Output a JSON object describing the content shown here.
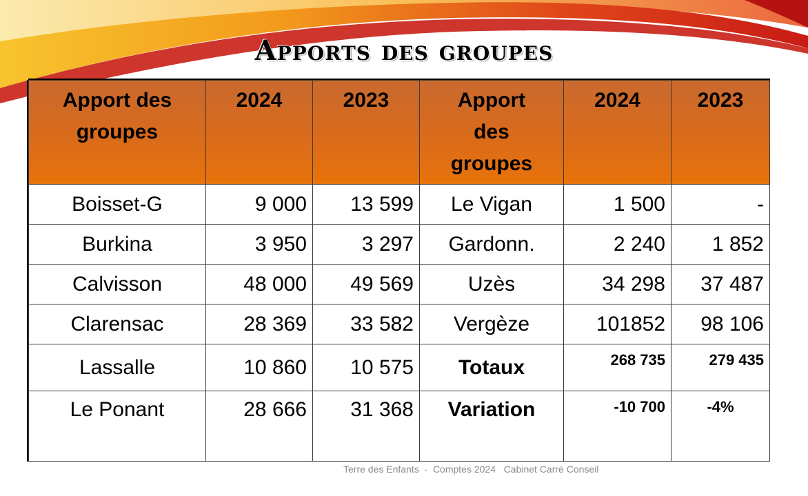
{
  "title": "Apports des groupes",
  "table": {
    "headers": [
      "Apport des groupes",
      "2024",
      "2023",
      "Apport des groupes",
      "2024",
      "2023"
    ],
    "rows": [
      [
        "Boisset-G",
        "9 000",
        "13 599",
        "Le Vigan",
        "1 500",
        "-"
      ],
      [
        "Burkina",
        "3 950",
        "3 297",
        "Gardonn.",
        "2 240",
        "1 852"
      ],
      [
        "Calvisson",
        "48 000",
        "49 569",
        "Uzès",
        "34 298",
        "37 487"
      ],
      [
        "Clarensac",
        "28 369",
        "33 582",
        "Vergèze",
        "101852",
        "98 106"
      ],
      [
        "Lassalle",
        "10 860",
        "10 575",
        "Totaux",
        "268 735",
        "279 435"
      ],
      [
        "Le Ponant",
        "28 666",
        "31 368",
        "Variation",
        "-10 700",
        "-4%"
      ]
    ]
  },
  "footer": {
    "left": "Terre des Enfants  -  Comptes 2024",
    "right": "Cabinet Carré Conseil"
  },
  "colors": {
    "header_fill": "#e46a08",
    "swoosh_red": "#d3271b",
    "swoosh_orange": "#f39a1c",
    "swoosh_yellow": "#f7d13c"
  }
}
